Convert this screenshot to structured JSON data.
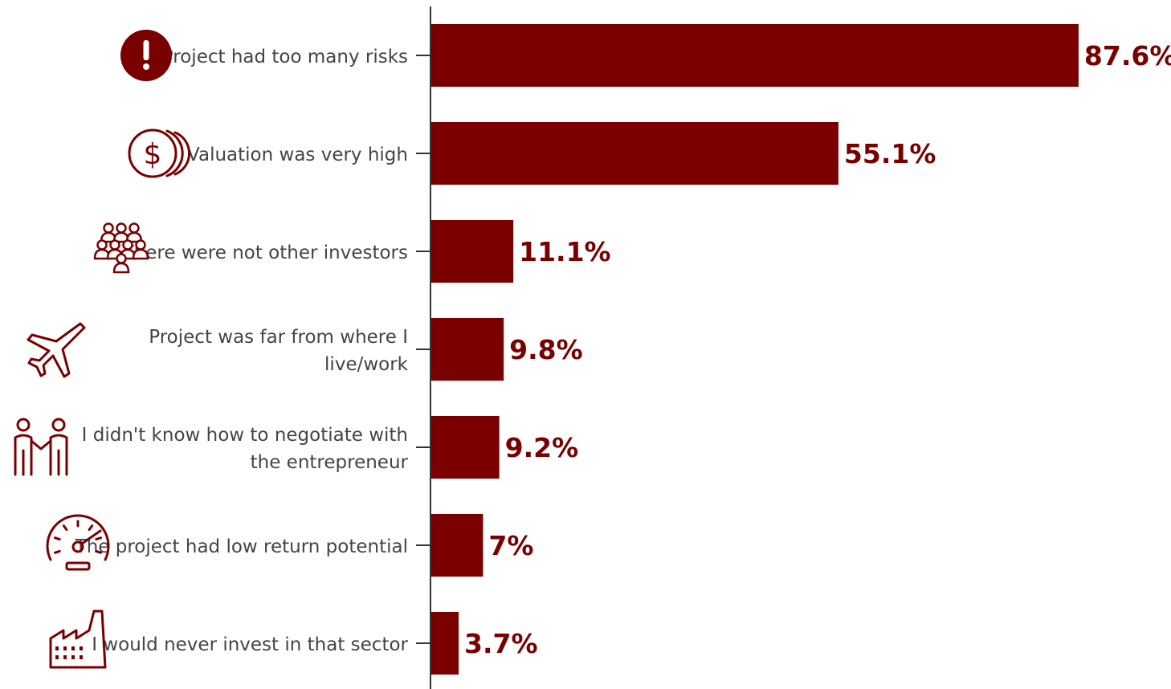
{
  "accent_color": "#7a0000",
  "axis_color": "#333333",
  "label_color": "#444444",
  "chart_data": {
    "type": "bar",
    "orientation": "horizontal",
    "xlim": [
      0,
      100
    ],
    "grid": false,
    "categories": [
      {
        "label": "Project had too many risks",
        "value": 87.6,
        "value_label": "87.6%",
        "icon": "exclamation-circle-icon"
      },
      {
        "label": "Valuation was very high",
        "value": 55.1,
        "value_label": "55.1%",
        "icon": "coins-dollar-icon"
      },
      {
        "label": "There were not other investors",
        "value": 11.1,
        "value_label": "11.1%",
        "icon": "people-group-icon"
      },
      {
        "label": "Project was far from where I live/work",
        "value": 9.8,
        "value_label": "9.8%",
        "icon": "airplane-icon"
      },
      {
        "label": "I didn't know how to negotiate with the entrepreneur",
        "value": 9.2,
        "value_label": "9.2%",
        "icon": "handshake-people-icon"
      },
      {
        "label": "The project had low return potential",
        "value": 7,
        "value_label": "7%",
        "icon": "speedometer-icon"
      },
      {
        "label": "I would never invest in that sector",
        "value": 3.7,
        "value_label": "3.7%",
        "icon": "factory-icon"
      }
    ]
  }
}
